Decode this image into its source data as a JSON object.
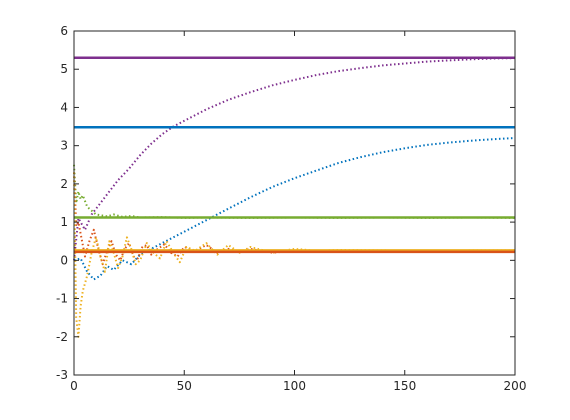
{
  "chart_data": {
    "type": "line",
    "title": "",
    "xlabel": "",
    "ylabel": "",
    "xlim": [
      0,
      200
    ],
    "ylim": [
      -3,
      6
    ],
    "x_ticks": [
      0,
      50,
      100,
      150,
      200
    ],
    "y_ticks": [
      -3,
      -2,
      -1,
      0,
      1,
      2,
      3,
      4,
      5,
      6
    ],
    "x_tick_labels": [
      "0",
      "50",
      "100",
      "150",
      "200"
    ],
    "y_tick_labels": [
      "-3",
      "-2",
      "-1",
      "0",
      "1",
      "2",
      "3",
      "4",
      "5",
      "6"
    ],
    "grid": false,
    "legend": "none",
    "series": [
      {
        "style": "solid",
        "color": "#7e2f8e",
        "x": [
          0,
          200
        ],
        "y": [
          5.3,
          5.3
        ]
      },
      {
        "style": "solid",
        "color": "#0072bd",
        "x": [
          0,
          200
        ],
        "y": [
          3.48,
          3.48
        ]
      },
      {
        "style": "solid",
        "color": "#77ac30",
        "x": [
          0,
          200
        ],
        "y": [
          1.12,
          1.12
        ]
      },
      {
        "style": "solid",
        "color": "#edb120",
        "x": [
          0,
          200
        ],
        "y": [
          0.26,
          0.26
        ]
      },
      {
        "style": "solid",
        "color": "#d95319",
        "x": [
          0,
          200
        ],
        "y": [
          0.22,
          0.22
        ]
      },
      {
        "style": "dotted",
        "color": "#7e2f8e",
        "x": [
          0,
          2,
          5,
          8,
          12,
          16,
          20,
          25,
          30,
          35,
          40,
          45,
          50,
          60,
          70,
          80,
          90,
          100,
          110,
          120,
          130,
          140,
          150,
          160,
          170,
          180,
          190,
          200
        ],
        "y": [
          0.0,
          1.1,
          0.8,
          1.2,
          1.5,
          1.8,
          2.1,
          2.4,
          2.75,
          3.05,
          3.3,
          3.5,
          3.65,
          3.95,
          4.2,
          4.4,
          4.58,
          4.72,
          4.85,
          4.95,
          5.03,
          5.1,
          5.15,
          5.2,
          5.23,
          5.26,
          5.28,
          5.29
        ]
      },
      {
        "style": "dotted",
        "color": "#0072bd",
        "x": [
          0,
          3,
          6,
          9,
          12,
          15,
          18,
          22,
          26,
          30,
          35,
          40,
          45,
          50,
          60,
          70,
          80,
          90,
          100,
          110,
          120,
          130,
          140,
          150,
          160,
          170,
          180,
          190,
          200
        ],
        "y": [
          0.0,
          0.05,
          -0.3,
          -0.5,
          -0.4,
          -0.15,
          -0.25,
          0.0,
          -0.1,
          0.15,
          0.3,
          0.45,
          0.6,
          0.75,
          1.05,
          1.35,
          1.65,
          1.92,
          2.15,
          2.35,
          2.55,
          2.7,
          2.83,
          2.93,
          3.02,
          3.08,
          3.13,
          3.17,
          3.2
        ]
      },
      {
        "style": "dotted",
        "color": "#77ac30",
        "x": [
          0,
          1,
          2,
          3,
          4,
          6,
          8,
          10,
          12,
          15,
          18,
          22,
          26,
          30,
          40,
          50,
          60,
          80,
          100,
          120,
          140,
          160,
          180,
          200
        ],
        "y": [
          2.5,
          1.5,
          1.8,
          1.6,
          1.7,
          1.4,
          1.3,
          1.2,
          1.18,
          1.15,
          1.2,
          1.14,
          1.16,
          1.12,
          1.13,
          1.11,
          1.12,
          1.11,
          1.12,
          1.11,
          1.12,
          1.11,
          1.12,
          1.11
        ]
      },
      {
        "style": "dotted",
        "color": "#d95319",
        "x": [
          0,
          1,
          2,
          3,
          5,
          7,
          9,
          11,
          13,
          15,
          17,
          19,
          21,
          23,
          25,
          27,
          29,
          31,
          33,
          35,
          38,
          41,
          44,
          47,
          50,
          55,
          60,
          65,
          70,
          75,
          80,
          90,
          100,
          110,
          120,
          140,
          160,
          180,
          200
        ],
        "y": [
          2.3,
          0.9,
          1.0,
          0.7,
          0.1,
          0.5,
          0.8,
          0.3,
          -0.1,
          0.25,
          0.5,
          0.15,
          0.0,
          0.3,
          0.45,
          0.1,
          0.05,
          0.35,
          0.4,
          0.15,
          0.3,
          0.42,
          0.2,
          0.1,
          0.35,
          0.25,
          0.4,
          0.2,
          0.3,
          0.22,
          0.3,
          0.2,
          0.25,
          0.22,
          0.24,
          0.23,
          0.22,
          0.23,
          0.22
        ]
      },
      {
        "style": "dotted",
        "color": "#edb120",
        "x": [
          0,
          1,
          2,
          3,
          4,
          6,
          8,
          10,
          12,
          14,
          16,
          18,
          20,
          22,
          24,
          26,
          28,
          30,
          33,
          36,
          39,
          42,
          45,
          48,
          51,
          55,
          60,
          65,
          70,
          75,
          80,
          90,
          100,
          110,
          120,
          140,
          160,
          180,
          200
        ],
        "y": [
          2.3,
          -1.5,
          -2.0,
          -1.2,
          -0.8,
          -0.4,
          0.2,
          0.6,
          0.1,
          -0.3,
          0.5,
          0.2,
          -0.2,
          0.1,
          0.6,
          0.3,
          -0.1,
          0.0,
          0.45,
          0.2,
          0.05,
          0.5,
          0.2,
          -0.05,
          0.35,
          0.25,
          0.45,
          0.15,
          0.4,
          0.2,
          0.35,
          0.2,
          0.3,
          0.25,
          0.27,
          0.26,
          0.25,
          0.26,
          0.26
        ]
      }
    ]
  }
}
